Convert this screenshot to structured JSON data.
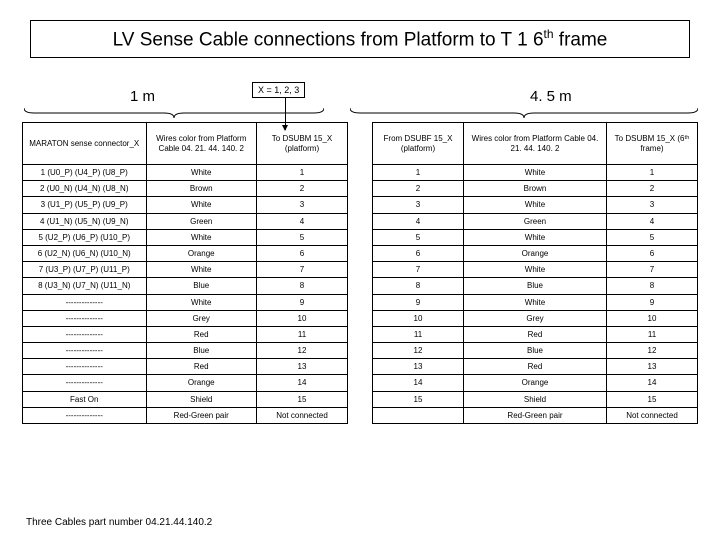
{
  "title_prefix": "LV Sense Cable connections from Platform to T 1 6",
  "title_suffix": " frame",
  "title_sup": "th",
  "x_label": "X = 1, 2, 3",
  "length_left": "1 m",
  "length_right": "4. 5 m",
  "left_table": {
    "headers": [
      "MARATON sense connector_X",
      "Wires color from Platform Cable 04. 21. 44. 140. 2",
      "To DSUBM 15_X (platform)"
    ],
    "rows": [
      [
        "1 (U0_P) (U4_P) (U8_P)",
        "White",
        "1"
      ],
      [
        "2 (U0_N) (U4_N) (U8_N)",
        "Brown",
        "2"
      ],
      [
        "3 (U1_P) (U5_P) (U9_P)",
        "White",
        "3"
      ],
      [
        "4 (U1_N) (U5_N) (U9_N)",
        "Green",
        "4"
      ],
      [
        "5 (U2_P) (U6_P) (U10_P)",
        "White",
        "5"
      ],
      [
        "6 (U2_N) (U6_N) (U10_N)",
        "Orange",
        "6"
      ],
      [
        "7 (U3_P) (U7_P) (U11_P)",
        "White",
        "7"
      ],
      [
        "8 (U3_N) (U7_N) (U11_N)",
        "Blue",
        "8"
      ],
      [
        "--------------",
        "White",
        "9"
      ],
      [
        "--------------",
        "Grey",
        "10"
      ],
      [
        "--------------",
        "Red",
        "11"
      ],
      [
        "--------------",
        "Blue",
        "12"
      ],
      [
        "--------------",
        "Red",
        "13"
      ],
      [
        "--------------",
        "Orange",
        "14"
      ],
      [
        "Fast On",
        "Shield",
        "15"
      ],
      [
        "--------------",
        "Red-Green pair",
        "Not connected"
      ]
    ]
  },
  "right_table": {
    "headers": [
      "From DSUBF 15_X (platform)",
      "Wires color from Platform Cable 04. 21. 44. 140. 2",
      "To DSUBM 15_X (6ᵗʰ frame)"
    ],
    "rows": [
      [
        "1",
        "White",
        "1"
      ],
      [
        "2",
        "Brown",
        "2"
      ],
      [
        "3",
        "White",
        "3"
      ],
      [
        "4",
        "Green",
        "4"
      ],
      [
        "5",
        "White",
        "5"
      ],
      [
        "6",
        "Orange",
        "6"
      ],
      [
        "7",
        "White",
        "7"
      ],
      [
        "8",
        "Blue",
        "8"
      ],
      [
        "9",
        "White",
        "9"
      ],
      [
        "10",
        "Grey",
        "10"
      ],
      [
        "11",
        "Red",
        "11"
      ],
      [
        "12",
        "Blue",
        "12"
      ],
      [
        "13",
        "Red",
        "13"
      ],
      [
        "14",
        "Orange",
        "14"
      ],
      [
        "15",
        "Shield",
        "15"
      ],
      [
        "",
        "Red-Green pair",
        "Not connected"
      ]
    ]
  },
  "footnote": "Three Cables part number 04.21.44.140.2"
}
